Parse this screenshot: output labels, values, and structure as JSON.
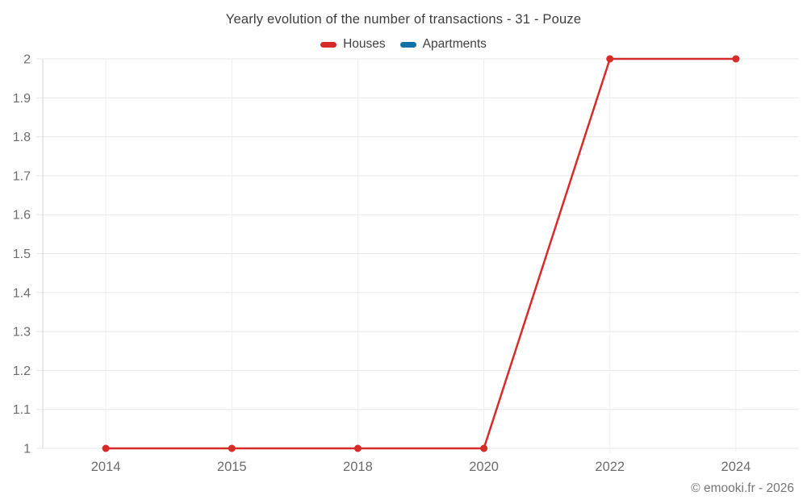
{
  "title": "Yearly evolution of the number of transactions - 31 - Pouze",
  "legend": {
    "items": [
      {
        "label": "Houses",
        "color": "#d62b28"
      },
      {
        "label": "Apartments",
        "color": "#1272a6"
      }
    ]
  },
  "footer": "© emooki.fr - 2026",
  "chart_data": {
    "type": "line",
    "title": "Yearly evolution of the number of transactions - 31 - Pouze",
    "categories": [
      "2014",
      "2015",
      "2018",
      "2020",
      "2022",
      "2024"
    ],
    "series": [
      {
        "name": "Houses",
        "color": "#d62b28",
        "values": [
          1,
          1,
          1,
          1,
          2,
          2
        ]
      },
      {
        "name": "Apartments",
        "color": "#1272a6",
        "values": []
      }
    ],
    "xlabel": "",
    "ylabel": "",
    "ylim": [
      1,
      2
    ],
    "ytick_step": 0.1,
    "ytick_labels": [
      "1",
      "1.1",
      "1.2",
      "1.3",
      "1.4",
      "1.5",
      "1.6",
      "1.7",
      "1.8",
      "1.9",
      "2"
    ],
    "grid": true,
    "legend_position": "top"
  }
}
